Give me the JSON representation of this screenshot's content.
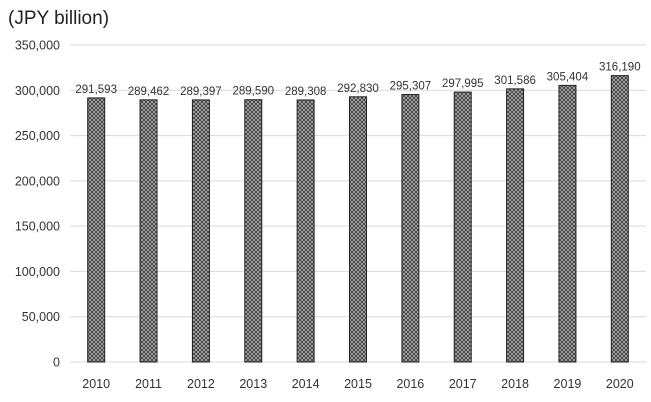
{
  "chart_data": {
    "type": "bar",
    "title": "",
    "unit_label": "(JPY billion)",
    "xlabel": "",
    "ylabel": "",
    "categories": [
      "2010",
      "2011",
      "2012",
      "2013",
      "2014",
      "2015",
      "2016",
      "2017",
      "2018",
      "2019",
      "2020"
    ],
    "values": [
      291593,
      289462,
      289397,
      289590,
      289308,
      292830,
      295307,
      297995,
      301586,
      305404,
      316190
    ],
    "data_labels": [
      "291,593",
      "289,462",
      "289,397",
      "289,590",
      "289,308",
      "292,830",
      "295,307",
      "297,995",
      "301,586",
      "305,404",
      "316,190"
    ],
    "ylim": [
      0,
      350000
    ],
    "yticks": [
      0,
      50000,
      100000,
      150000,
      200000,
      250000,
      300000,
      350000
    ],
    "ytick_labels": [
      "0",
      "50,000",
      "100,000",
      "150,000",
      "200,000",
      "250,000",
      "300,000",
      "350,000"
    ],
    "grid": true,
    "legend": "none",
    "bar_pattern": "crosshatch-gray",
    "colors": {
      "bar_fill": "#9a9a9a",
      "bar_pattern_dark": "#333333",
      "bar_stroke": "#222222",
      "gridline": "#d9d9d9",
      "text": "#333333"
    }
  }
}
